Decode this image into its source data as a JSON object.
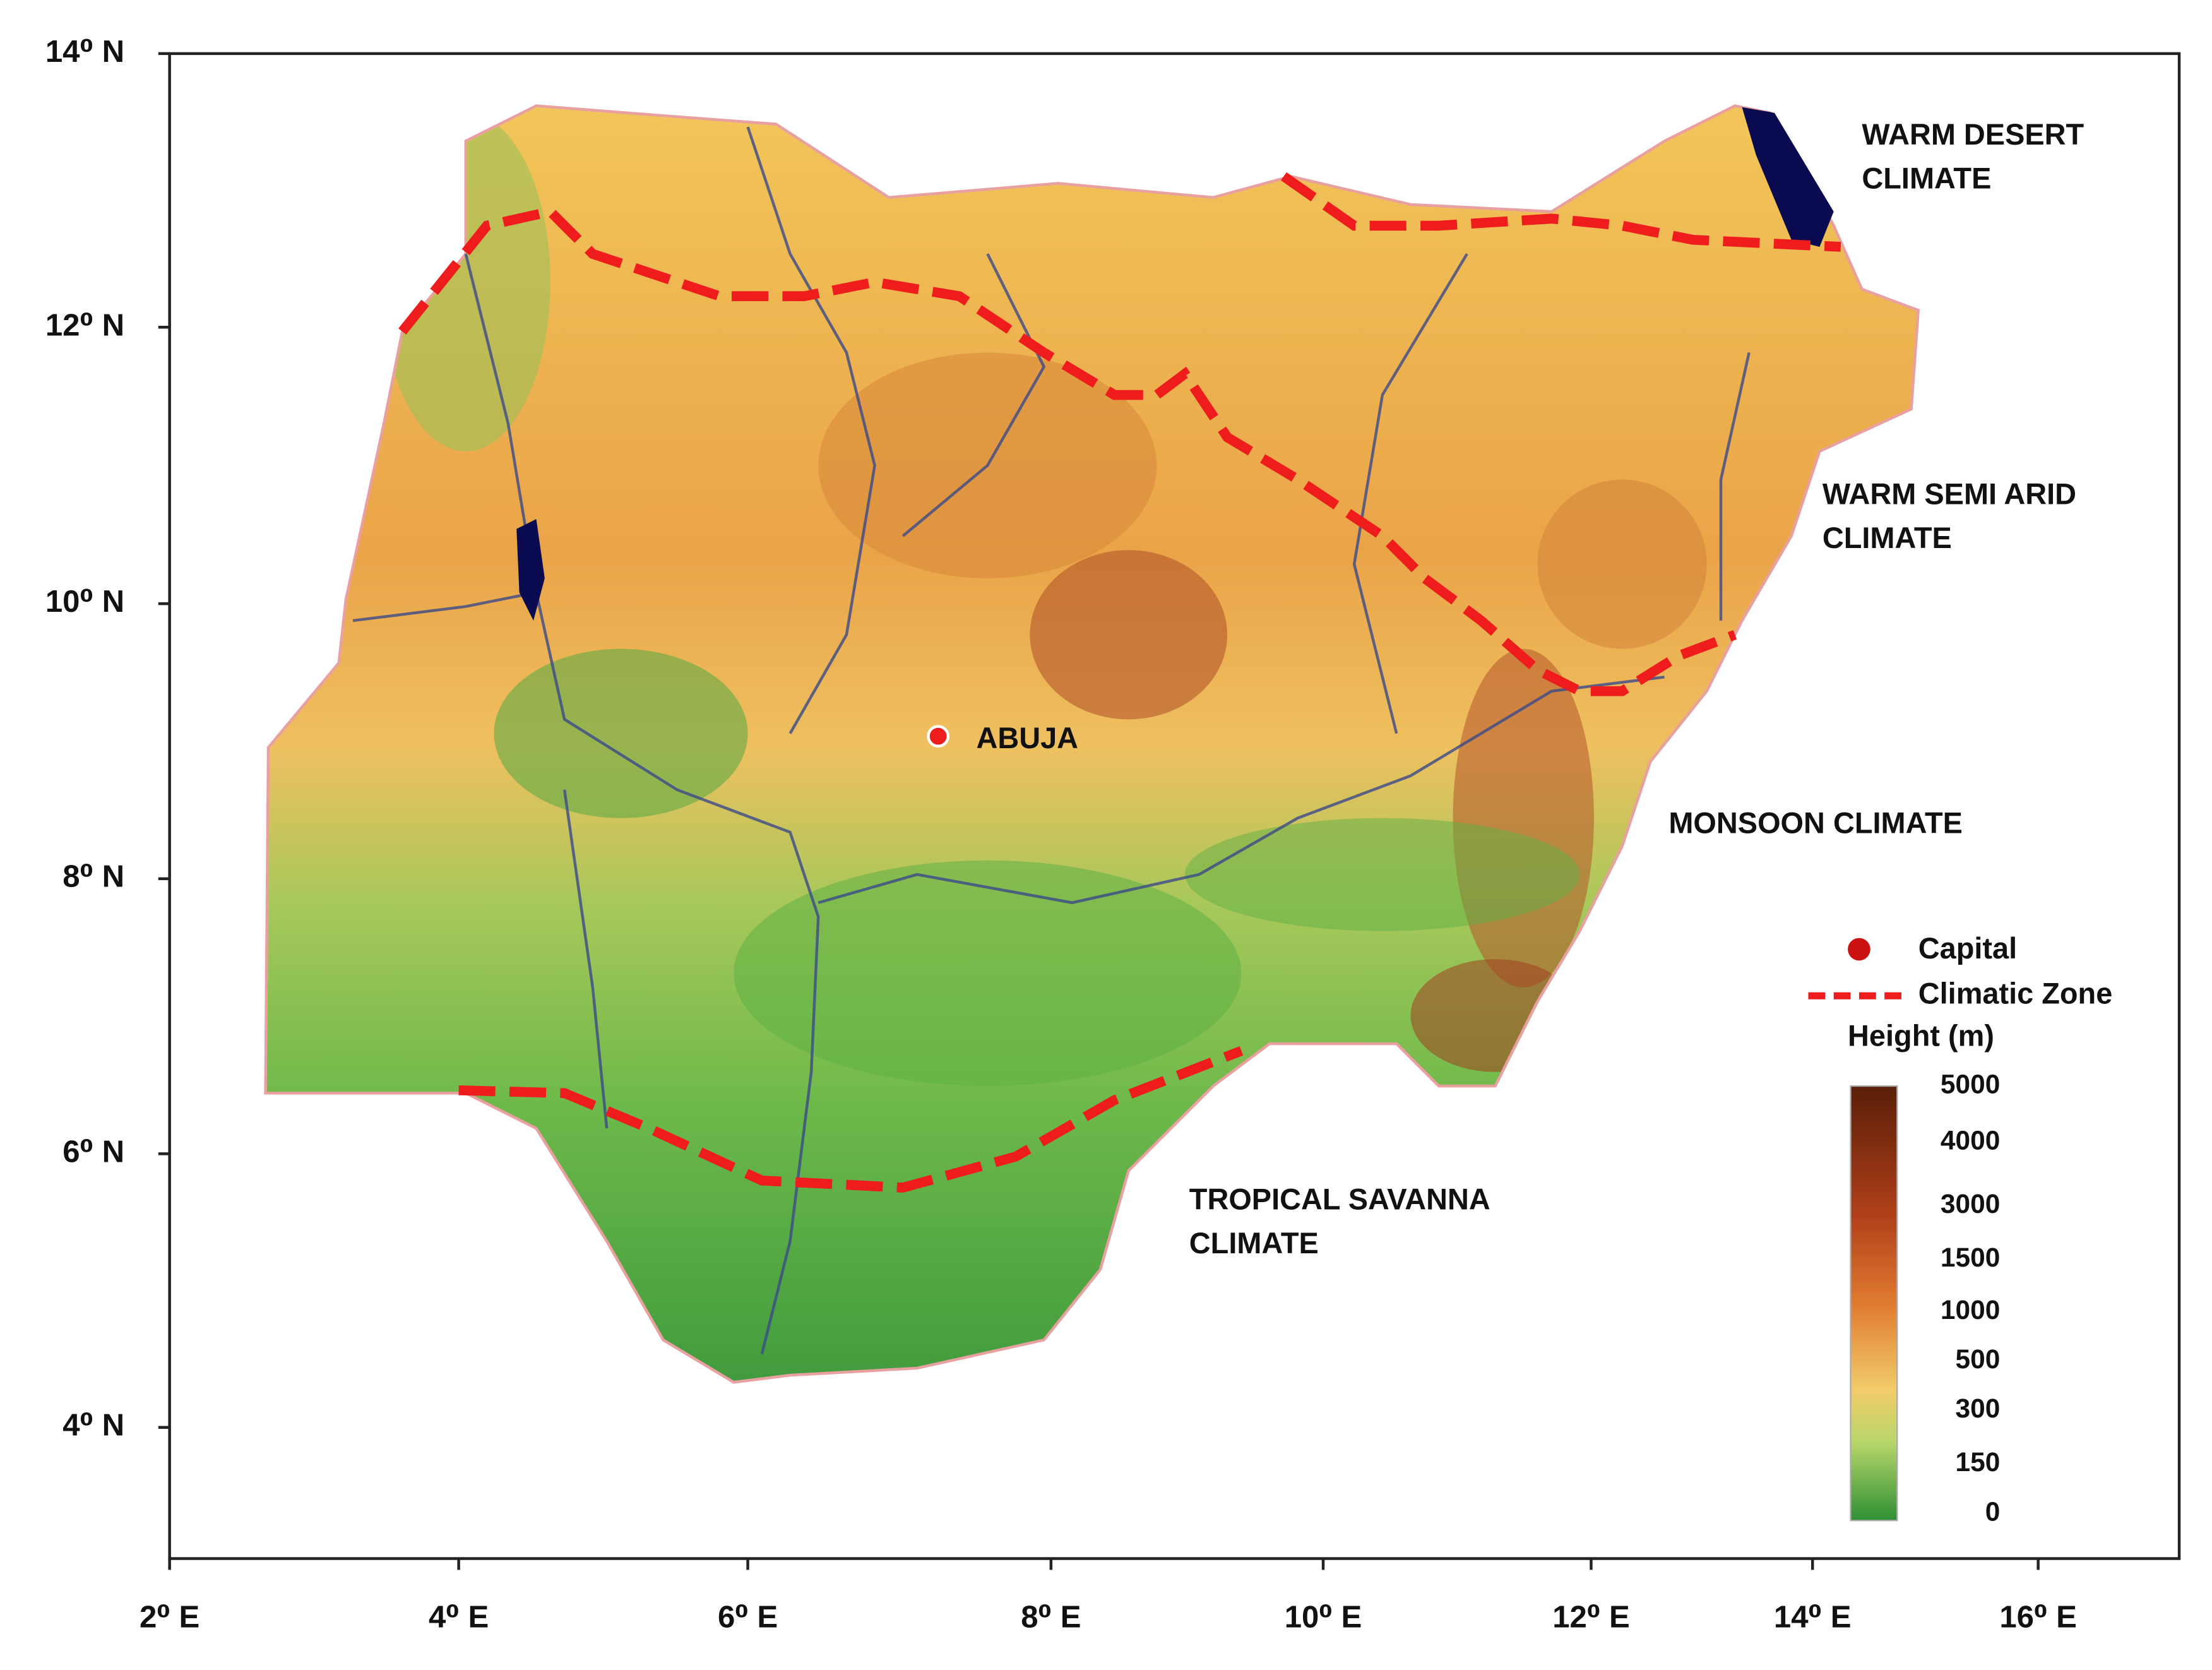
{
  "map": {
    "latitude_labels": [
      "14⁰ N",
      "12⁰ N",
      "10⁰ N",
      "8⁰ N",
      "6⁰ N",
      "4⁰ N"
    ],
    "longitude_labels": [
      "2⁰ E",
      "4⁰ E",
      "6⁰ E",
      "8⁰ E",
      "10⁰ E",
      "12⁰ E",
      "14⁰ E",
      "16⁰ E"
    ],
    "city": "ABUJA",
    "zones": [
      {
        "lines": [
          "WARM DESERT",
          "CLIMATE"
        ]
      },
      {
        "lines": [
          "WARM SEMI ARID",
          "CLIMATE"
        ]
      },
      {
        "lines": [
          "MONSOON CLIMATE"
        ]
      },
      {
        "lines": [
          "TROPICAL SAVANNA",
          "CLIMATE"
        ]
      }
    ],
    "legend": {
      "capital": "Capital",
      "zone": "Climatic Zone",
      "height_title": "Height (m)",
      "height_labels": [
        5000,
        4000,
        3000,
        1500,
        1000,
        500,
        300,
        150,
        0
      ]
    }
  }
}
